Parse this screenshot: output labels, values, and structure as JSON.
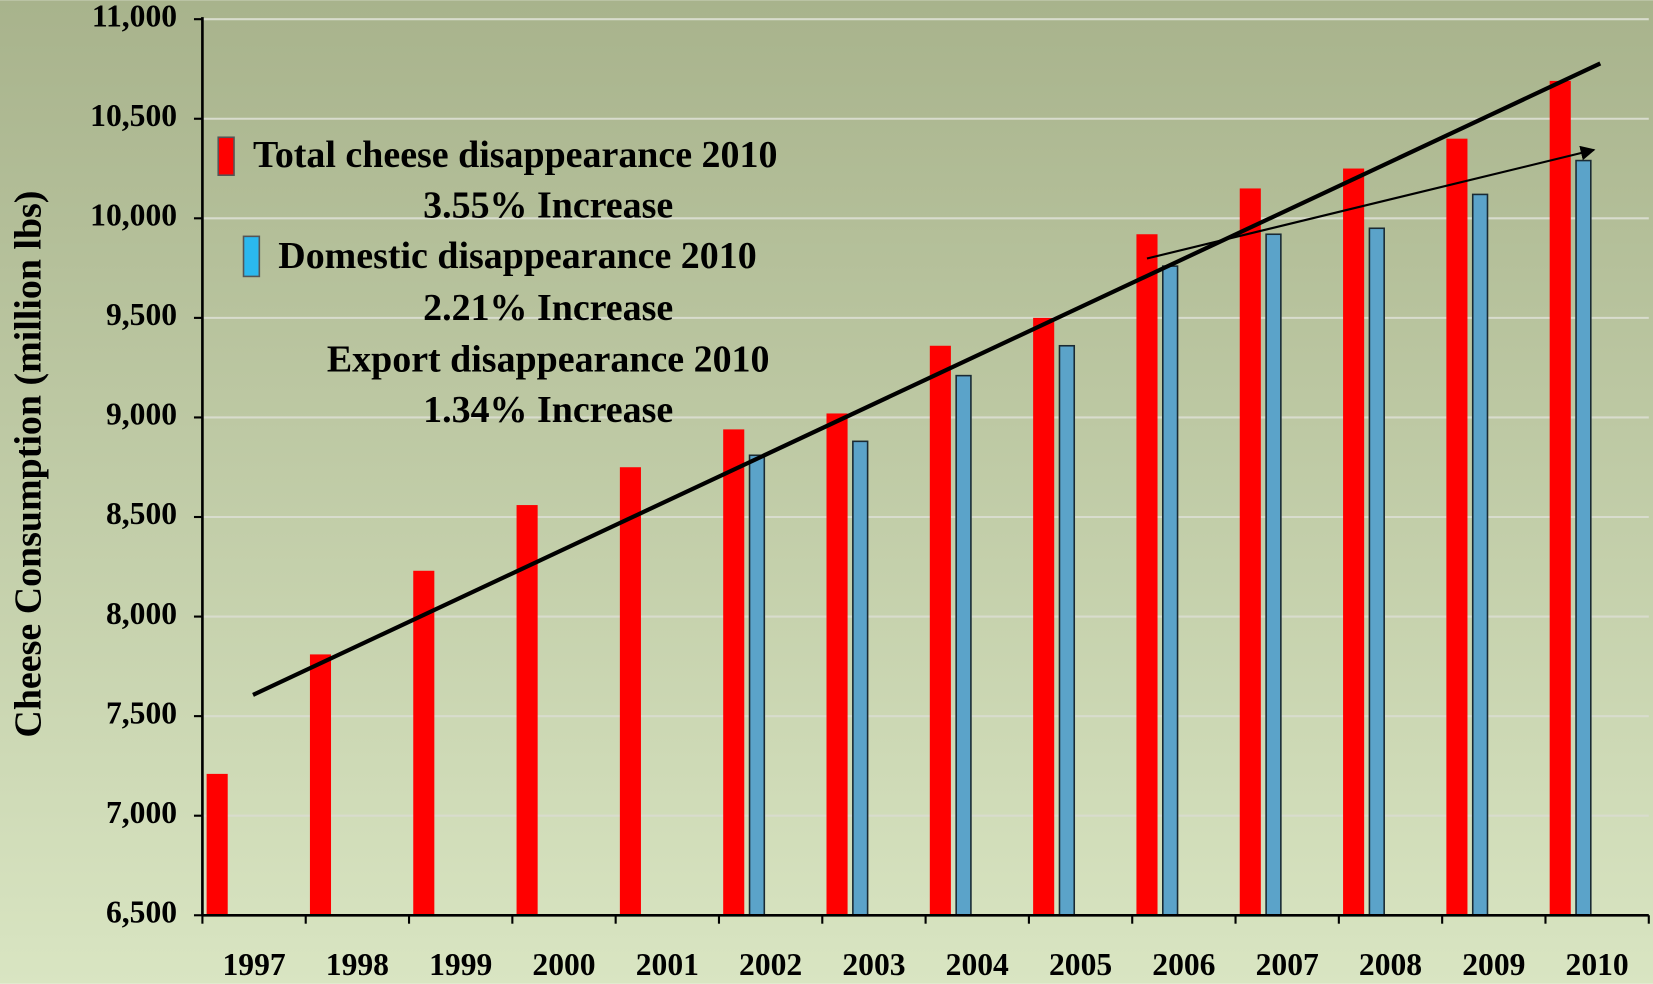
{
  "chart_data": {
    "type": "bar",
    "y_label": "Cheese Consumption (million lbs)",
    "categories": [
      "1997",
      "1998",
      "1999",
      "2000",
      "2001",
      "2002",
      "2003",
      "2004",
      "2005",
      "2006",
      "2007",
      "2008",
      "2009",
      "2010"
    ],
    "series": [
      {
        "name": "Total cheese disappearance 2010",
        "color": "#ff0000",
        "values": [
          7210,
          7810,
          8230,
          8560,
          8750,
          8940,
          9020,
          9360,
          9500,
          9920,
          10150,
          10250,
          10400,
          10690
        ]
      },
      {
        "name": "Domestic disappearance 2010",
        "color": "#5ba3c9",
        "values": [
          null,
          null,
          null,
          null,
          null,
          8810,
          8880,
          9210,
          9360,
          9760,
          9920,
          9950,
          10120,
          10290
        ]
      }
    ],
    "annotations": [
      "3.55% Increase",
      "2.21% Increase",
      "Export disappearance 2010",
      "1.34% Increase"
    ],
    "ylim": [
      6500,
      11000
    ],
    "yticks": [
      {
        "value": 6500,
        "label": "6,500"
      },
      {
        "value": 7000,
        "label": "7,000"
      },
      {
        "value": 7500,
        "label": "7,500"
      },
      {
        "value": 8000,
        "label": "8,000"
      },
      {
        "value": 8500,
        "label": "8,500"
      },
      {
        "value": 9000,
        "label": "9,000"
      },
      {
        "value": 9500,
        "label": "9,500"
      },
      {
        "value": 10000,
        "label": "10,000"
      },
      {
        "value": 10500,
        "label": "10,500"
      },
      {
        "value": 11000,
        "label": "11,000"
      }
    ],
    "grid": true
  }
}
